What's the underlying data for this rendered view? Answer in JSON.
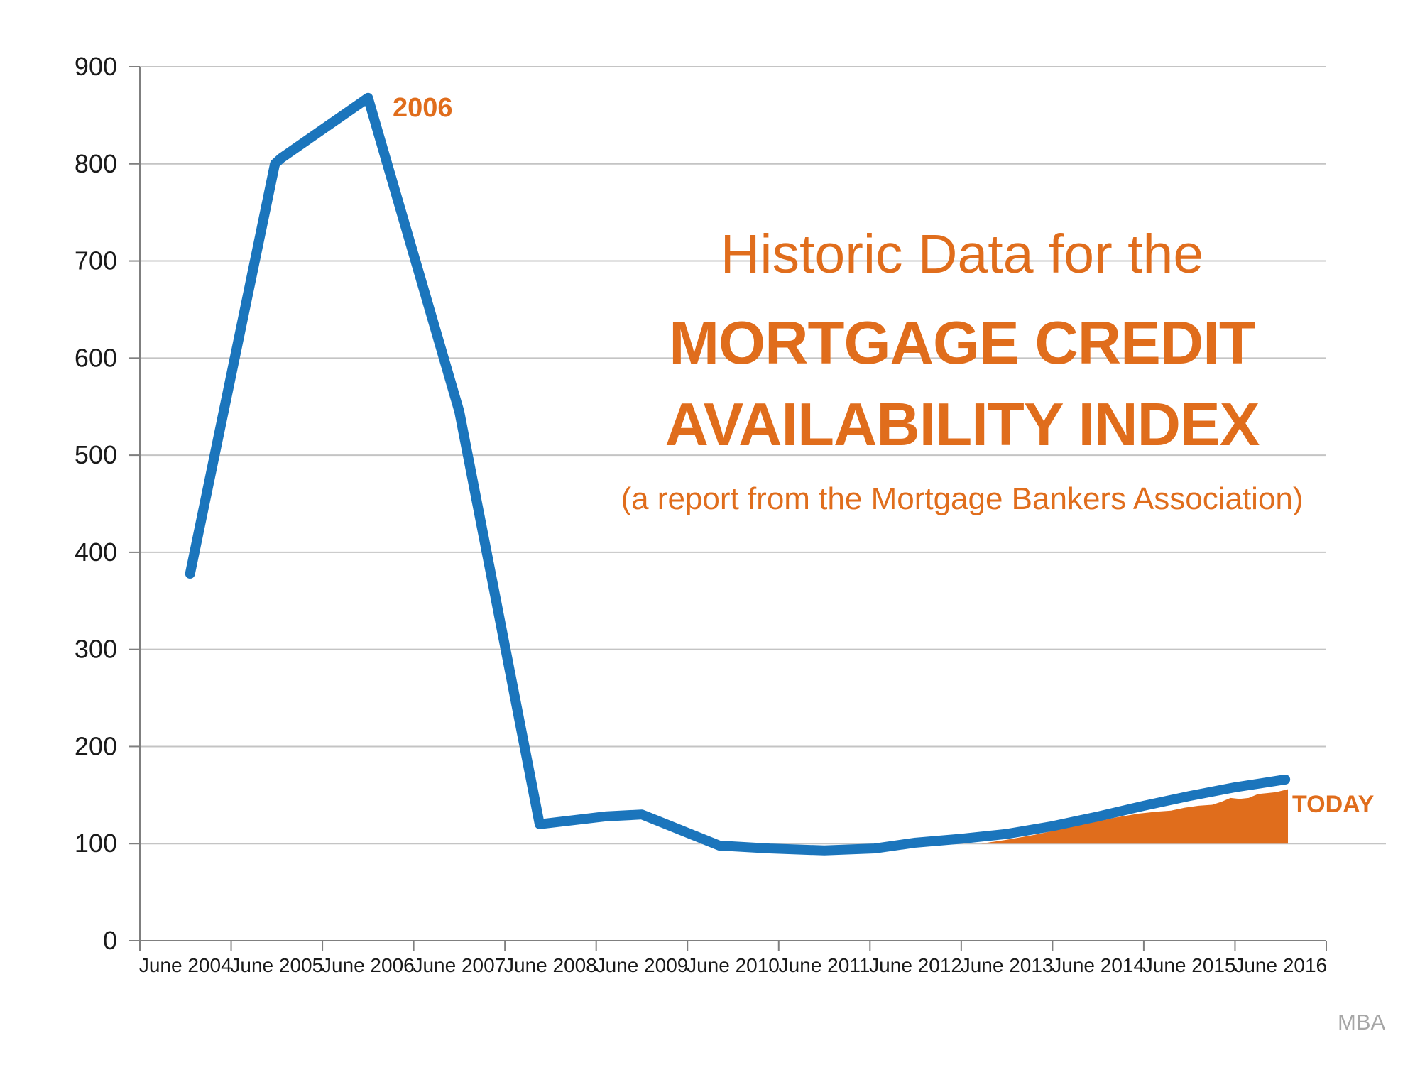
{
  "slide_title": {
    "line1": "Historic Data for the",
    "line2": "MORTGAGE CREDIT",
    "line3": "AVAILABILITY INDEX",
    "subtitle": "(a report from the Mortgage Bankers Association)"
  },
  "annotations": {
    "peak_year": "2006",
    "today": "TODAY"
  },
  "source": {
    "label": "MBA"
  },
  "colors": {
    "accent_orange": "#E06D1C",
    "line_blue": "#1B75BC",
    "grid_grey": "#C4C4C4",
    "axis_grey": "#7F7F7F",
    "tick_text": "#1A1A1A",
    "source_grey": "#A6A6A6",
    "background": "#FFFFFF"
  },
  "chart_data": {
    "type": "line",
    "title": "Historic Data for the MORTGAGE CREDIT AVAILABILITY INDEX",
    "subtitle": "(a report from the Mortgage Bankers Association)",
    "source": "MBA",
    "legend": "none",
    "grid": "horizontal",
    "ylim": [
      0,
      900
    ],
    "y_ticks": [
      0,
      100,
      200,
      300,
      400,
      500,
      600,
      700,
      800,
      900
    ],
    "x_tick_labels": [
      "June 2004",
      "June 2005",
      "June 2006",
      "June 2007",
      "June 2008",
      "June 2009",
      "June 2010",
      "June 2011",
      "June 2012",
      "June 2013",
      "June 2014",
      "June 2015",
      "June 2016"
    ],
    "annual_readings": {
      "categories": [
        "June 2004",
        "June 2005",
        "June 2006",
        "June 2007",
        "June 2008",
        "June 2009",
        "June 2010",
        "June 2011",
        "June 2012",
        "June 2013",
        "June 2014",
        "June 2015",
        "June 2016"
      ],
      "values": [
        378,
        803,
        868,
        545,
        121,
        130,
        98,
        93,
        101,
        110,
        128,
        149,
        166
      ]
    },
    "series": [
      {
        "name": "Mortgage Credit Availability Index",
        "peak": {
          "label": "2006",
          "value": 868
        },
        "x_unit_note": "x: 0 = June 2004 label center, 12 = June 2016 label center",
        "line_points": [
          [
            0.05,
            378
          ],
          [
            0.98,
            800
          ],
          [
            1.05,
            806
          ],
          [
            2.0,
            868
          ],
          [
            3.0,
            545
          ],
          [
            3.88,
            120
          ],
          [
            4.6,
            128
          ],
          [
            5.0,
            130
          ],
          [
            5.85,
            98
          ],
          [
            6.4,
            95
          ],
          [
            7.0,
            93
          ],
          [
            7.55,
            95
          ],
          [
            8.0,
            101
          ],
          [
            8.5,
            105
          ],
          [
            9.0,
            110
          ],
          [
            9.5,
            118
          ],
          [
            10.0,
            128
          ],
          [
            10.5,
            139
          ],
          [
            11.0,
            149
          ],
          [
            11.5,
            158
          ],
          [
            12.05,
            166
          ]
        ]
      }
    ],
    "highlight_area": {
      "label": "TODAY",
      "baseline": 100,
      "from_label": "June 2013",
      "to_label": "June 2016",
      "top_points": [
        [
          8.72,
          100
        ],
        [
          9.0,
          104
        ],
        [
          9.3,
          109
        ],
        [
          9.6,
          115
        ],
        [
          9.9,
          121
        ],
        [
          10.2,
          127
        ],
        [
          10.45,
          131
        ],
        [
          10.65,
          133
        ],
        [
          10.8,
          134
        ],
        [
          10.95,
          137
        ],
        [
          11.1,
          139
        ],
        [
          11.25,
          140
        ],
        [
          11.35,
          143
        ],
        [
          11.45,
          147
        ],
        [
          11.55,
          146
        ],
        [
          11.65,
          147
        ],
        [
          11.75,
          151
        ],
        [
          11.85,
          152
        ],
        [
          11.95,
          153
        ],
        [
          12.08,
          156
        ]
      ]
    }
  }
}
